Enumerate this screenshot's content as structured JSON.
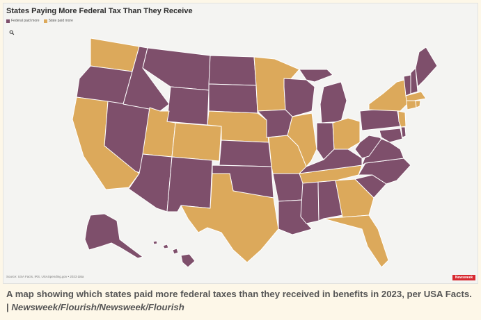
{
  "header": {
    "title": "States Paying More Federal Tax Than They Receive"
  },
  "legend": {
    "items": [
      {
        "label": "Federal paid more",
        "color": "#7e4f6b"
      },
      {
        "label": "State paid more",
        "color": "#dca95b"
      }
    ]
  },
  "zoom": {
    "icon": "search-icon"
  },
  "footer": {
    "source": "Source: USA Facts, IRS, USASpending.gov • 2023 data",
    "logo": "Newsweek"
  },
  "caption": {
    "text": "A map showing which states paid more federal taxes than they received in benefits in 2023, per USA Facts.",
    "credit_prefix": "| ",
    "credit": "Newsweek/Flourish/Newsweek/Flourish"
  },
  "colors": {
    "federal": "#7e4f6b",
    "state": "#dca95b",
    "background": "#f4f4f2",
    "page": "#fdf7e8"
  },
  "map_data": {
    "federal_paid_more": [
      "WA-excluded",
      "OR",
      "ID",
      "NV",
      "AZ",
      "NM",
      "MT",
      "WY",
      "ND",
      "SD",
      "KS",
      "OK",
      "IA",
      "WI",
      "MI",
      "IN",
      "KY",
      "WV",
      "VA",
      "NC",
      "SC",
      "AL",
      "MS",
      "LA",
      "AR",
      "PA",
      "MD",
      "DE",
      "VT",
      "ME",
      "NH",
      "AK",
      "HI",
      "MO-excluded"
    ],
    "state_paid_more": [
      "WA",
      "CA",
      "UT",
      "CO",
      "NE",
      "TX",
      "MN",
      "IL",
      "MO",
      "TN",
      "GA",
      "FL",
      "OH",
      "NY",
      "NJ",
      "CT",
      "MA",
      "RI"
    ]
  }
}
